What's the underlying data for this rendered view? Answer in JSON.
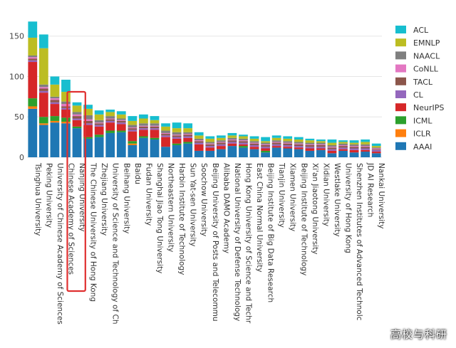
{
  "chart_data": {
    "type": "bar",
    "stacked": true,
    "title": "",
    "xlabel": "",
    "ylabel": "",
    "ylim": [
      0,
      170
    ],
    "yticks": [
      0,
      50,
      100,
      150
    ],
    "grid": true,
    "legend_position": "right",
    "categories": [
      "Tsinghua University",
      "Peking University",
      "University of Chinese Academy of Sciences",
      "Chinese Academy of Sciences",
      "Nanjing University",
      "The Chinese University of Hong Kong",
      "Zhejiang University",
      "University of Science and Technology of Ch",
      "Beihang University",
      "Baidu",
      "Fudan University",
      "Shanghai Jiao Tong University",
      "Northeastern University",
      "Harbin Institute of Technology",
      "Sun Yat-sen University",
      "Soochow University",
      "Beijing University of Posts and Telecommu",
      "Alibaba DAMO Academy",
      "National University of Defense Technology",
      "Hong Kong University of Science and Techr",
      "East China Normal University",
      "Beijing Institute of Big Data Research",
      "Tianjin University",
      "Xiamen University",
      "Beijing Institute of Technology",
      "Xi'an Jiaotong University",
      "Xidian University",
      "Westlake University",
      "University of Hong Kong",
      "Shenzhen Institutes of Advanced Technolc",
      "JD AI Research",
      "Nankai University"
    ],
    "series": [
      {
        "name": "AAAI",
        "color": "#1f77b4",
        "values": [
          60,
          40,
          43,
          42,
          36,
          23,
          25,
          30,
          31,
          15,
          24,
          22,
          13,
          15,
          17,
          8,
          8,
          10,
          14,
          12,
          10,
          6,
          12,
          11,
          10,
          8,
          9,
          5,
          8,
          6,
          7,
          5
        ]
      },
      {
        "name": "ICLR",
        "color": "#ff7f0e",
        "values": [
          3,
          2,
          2,
          2,
          0,
          0,
          0,
          0,
          0,
          2,
          0,
          0,
          0,
          0,
          0,
          0,
          0,
          0,
          0,
          0,
          0,
          0,
          0,
          0,
          0,
          0,
          0,
          0,
          0,
          0,
          0,
          0
        ]
      },
      {
        "name": "ICML",
        "color": "#2ca02c",
        "values": [
          10,
          8,
          6,
          5,
          2,
          2,
          3,
          3,
          2,
          3,
          2,
          2,
          0,
          2,
          2,
          0,
          0,
          0,
          0,
          2,
          0,
          2,
          0,
          0,
          0,
          0,
          0,
          0,
          0,
          0,
          0,
          0
        ]
      },
      {
        "name": "NeurIPS",
        "color": "#d62728",
        "values": [
          45,
          30,
          15,
          10,
          8,
          15,
          10,
          10,
          8,
          12,
          8,
          10,
          12,
          6,
          5,
          8,
          4,
          4,
          3,
          2,
          3,
          3,
          2,
          2,
          2,
          3,
          2,
          3,
          2,
          3,
          2,
          2
        ]
      },
      {
        "name": "CL",
        "color": "#9467bd",
        "values": [
          2,
          2,
          2,
          2,
          2,
          2,
          2,
          2,
          2,
          2,
          2,
          2,
          2,
          2,
          2,
          2,
          2,
          2,
          2,
          2,
          2,
          2,
          2,
          2,
          2,
          2,
          2,
          2,
          2,
          2,
          2,
          2
        ]
      },
      {
        "name": "TACL",
        "color": "#8c564b",
        "values": [
          2,
          3,
          3,
          2,
          3,
          3,
          2,
          2,
          2,
          2,
          2,
          2,
          2,
          2,
          2,
          2,
          2,
          2,
          2,
          2,
          2,
          2,
          2,
          2,
          2,
          2,
          2,
          2,
          2,
          2,
          2,
          1
        ]
      },
      {
        "name": "CoNLL",
        "color": "#e377c2",
        "values": [
          2,
          2,
          2,
          3,
          2,
          2,
          1,
          1,
          1,
          1,
          1,
          1,
          1,
          1,
          1,
          1,
          1,
          1,
          1,
          1,
          1,
          1,
          1,
          1,
          1,
          1,
          1,
          1,
          1,
          1,
          1,
          1
        ]
      },
      {
        "name": "NAACL",
        "color": "#7f7f7f",
        "values": [
          2,
          3,
          2,
          3,
          3,
          5,
          3,
          3,
          2,
          3,
          3,
          3,
          3,
          3,
          2,
          2,
          2,
          2,
          2,
          2,
          2,
          2,
          2,
          2,
          2,
          2,
          2,
          2,
          2,
          2,
          2,
          1
        ]
      },
      {
        "name": "EMNLP",
        "color": "#bcbd22",
        "values": [
          22,
          45,
          15,
          12,
          8,
          8,
          7,
          5,
          5,
          5,
          6,
          4,
          5,
          5,
          5,
          4,
          4,
          3,
          3,
          3,
          3,
          2,
          3,
          3,
          3,
          3,
          2,
          3,
          2,
          2,
          3,
          2
        ]
      },
      {
        "name": "ACL",
        "color": "#17becf",
        "values": [
          20,
          17,
          10,
          15,
          4,
          5,
          5,
          3,
          4,
          6,
          5,
          5,
          4,
          7,
          6,
          4,
          3,
          3,
          3,
          2,
          3,
          5,
          3,
          3,
          3,
          2,
          2,
          4,
          2,
          3,
          3,
          3
        ]
      }
    ],
    "highlight": {
      "from_category": "Chinese Academy of Sciences",
      "to_category": "Nanjing University",
      "color": "#e03030"
    }
  },
  "watermark": "高校与科研"
}
